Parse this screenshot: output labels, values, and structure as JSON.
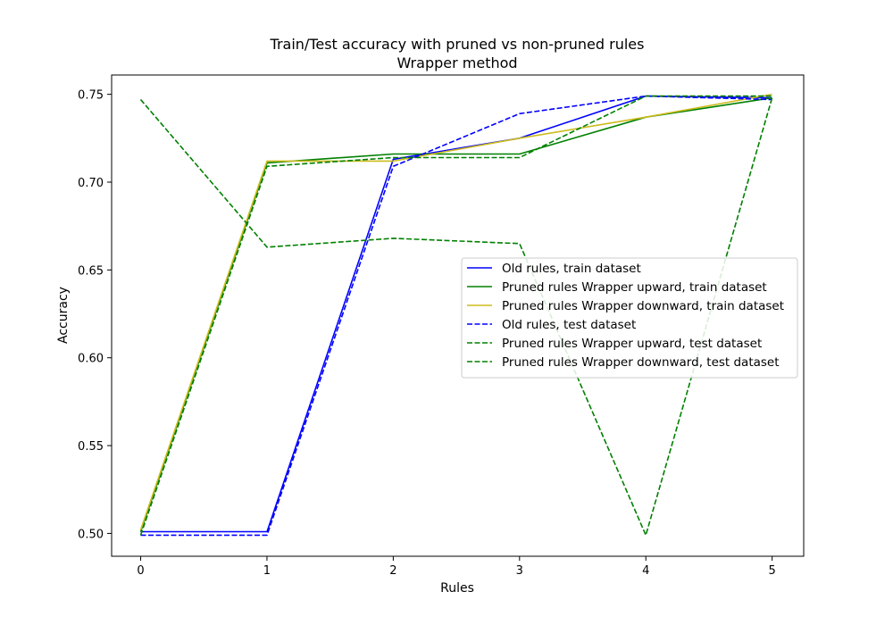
{
  "chart_data": {
    "type": "line",
    "title": "Train/Test accuracy with pruned vs non-pruned rules",
    "subtitle": "Wrapper method",
    "xlabel": "Rules",
    "ylabel": "Accuracy",
    "xlim": [
      -0.23,
      5.25
    ],
    "ylim": [
      0.487,
      0.761
    ],
    "x": [
      0,
      1,
      2,
      3,
      4,
      5
    ],
    "x_ticks": [
      0,
      1,
      2,
      3,
      4,
      5
    ],
    "y_ticks": [
      0.5,
      0.55,
      0.6,
      0.65,
      0.7,
      0.75
    ],
    "y_tick_labels": [
      "0.50",
      "0.55",
      "0.60",
      "0.65",
      "0.70",
      "0.75"
    ],
    "grid": false,
    "legend_position": "center-right",
    "series": [
      {
        "name": "Old rules, train dataset",
        "values": [
          0.501,
          0.501,
          0.713,
          0.725,
          0.749,
          0.748
        ],
        "color": "#0000ff",
        "dash": "solid"
      },
      {
        "name": "Pruned rules Wrapper upward, train dataset",
        "values": [
          0.501,
          0.711,
          0.716,
          0.716,
          0.737,
          0.748
        ],
        "color": "#008000",
        "dash": "solid"
      },
      {
        "name": "Pruned rules Wrapper downward, train dataset",
        "values": [
          0.502,
          0.712,
          0.712,
          0.725,
          0.737,
          0.75
        ],
        "color": "#cdbb1c",
        "dash": "solid"
      },
      {
        "name": "Old rules, test dataset",
        "values": [
          0.499,
          0.499,
          0.709,
          0.739,
          0.749,
          0.747
        ],
        "color": "#0000ff",
        "dash": "dashed"
      },
      {
        "name": "Pruned rules Wrapper upward, test dataset",
        "values": [
          0.499,
          0.709,
          0.714,
          0.714,
          0.749,
          0.749
        ],
        "color": "#008000",
        "dash": "dashed"
      },
      {
        "name": "Pruned rules Wrapper downward, test dataset",
        "values": [
          0.747,
          0.663,
          0.668,
          0.665,
          0.499,
          0.748
        ],
        "color": "#008000",
        "dash": "dashed"
      }
    ]
  }
}
